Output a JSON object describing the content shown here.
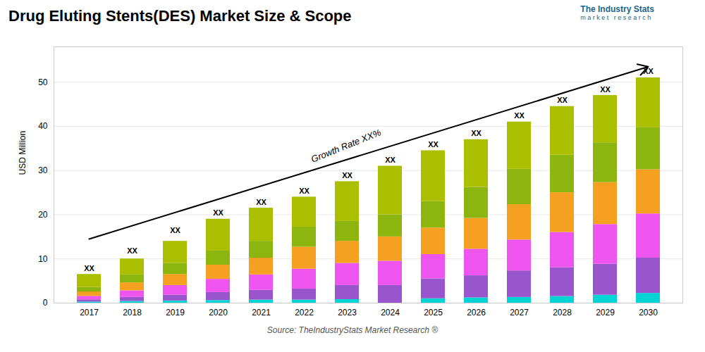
{
  "chart_data": {
    "type": "bar",
    "stacked": true,
    "title": "Drug Eluting Stents(DES) Market Size & Scope",
    "ylabel": "USD Million",
    "source": "Source: TheIndustryStats Market Research ®",
    "logo_text": [
      "The Industry Stats",
      "m a r k e t   r e s e a r c h"
    ],
    "categories": [
      "2017",
      "2018",
      "2019",
      "2020",
      "2021",
      "2022",
      "2023",
      "2024",
      "2025",
      "2026",
      "2027",
      "2028",
      "2029",
      "2030"
    ],
    "series": [
      {
        "color": "#00D5D5",
        "values": [
          0.25,
          0.4,
          0.5,
          0.6,
          0.7,
          0.7,
          0.8,
          0.0,
          1.0,
          1.2,
          1.3,
          1.5,
          1.8,
          2.2
        ]
      },
      {
        "color": "#9955CC",
        "values": [
          0.5,
          0.9,
          1.3,
          1.8,
          2.2,
          2.5,
          3.2,
          4.0,
          4.5,
          5.0,
          6.0,
          6.5,
          7.0,
          8.0
        ]
      },
      {
        "color": "#EE55EE",
        "values": [
          0.8,
          1.5,
          2.2,
          3.0,
          3.5,
          4.5,
          5.0,
          5.5,
          5.5,
          6.0,
          7.0,
          8.0,
          9.0,
          10.0
        ]
      },
      {
        "color": "#F5A020",
        "values": [
          1.0,
          1.8,
          2.5,
          3.2,
          3.8,
          5.0,
          5.0,
          5.5,
          6.0,
          7.0,
          8.0,
          9.0,
          9.5,
          10.0
        ]
      },
      {
        "color": "#8DB510",
        "values": [
          1.0,
          1.8,
          2.5,
          3.2,
          3.8,
          4.5,
          4.5,
          5.0,
          6.0,
          7.0,
          8.0,
          8.5,
          9.0,
          9.5
        ]
      },
      {
        "color": "#AABF00",
        "values": [
          2.95,
          3.6,
          5.0,
          7.2,
          7.5,
          6.8,
          9.0,
          11.0,
          11.5,
          10.8,
          10.7,
          11.0,
          10.7,
          11.3
        ]
      }
    ],
    "bar_labels": [
      "XX",
      "XX",
      "XX",
      "XX",
      "XX",
      "XX",
      "XX",
      "XX",
      "XX",
      "XX",
      "XX",
      "XX",
      "XX",
      "XX"
    ],
    "bar_label_y": [
      6.5,
      10.5,
      15.0,
      19.0,
      21.5,
      24.0,
      27.5,
      31.0,
      34.5,
      37.0,
      41.0,
      44.5,
      47.0,
      51.0
    ],
    "annotations": [
      {
        "type": "arrow",
        "x": "2017",
        "y": 14.5,
        "x_end": "2030",
        "y_end": 53.5
      },
      {
        "text": "Growth Rate XX%",
        "x": "2023",
        "y": 34.0
      }
    ],
    "ylim": [
      0,
      58
    ],
    "yticks": [
      0,
      10,
      20,
      30,
      40,
      50
    ],
    "grid": true
  }
}
